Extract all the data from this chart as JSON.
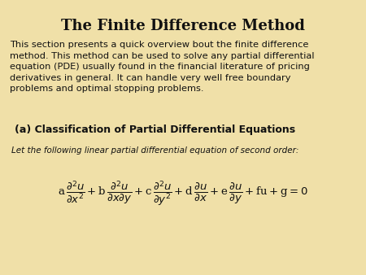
{
  "title": "The Finite Difference Method",
  "background_color": "#f0e0a8",
  "title_color": "#111111",
  "title_fontsize": 13,
  "body_text": "This section presents a quick overview bout the finite difference\nmethod. This method can be used to solve any partial differential\nequation (PDE) usually found in the financial literature of pricing\nderivatives in general. It can handle very well free boundary\nproblems and optimal stopping problems.",
  "body_fontsize": 8.2,
  "body_color": "#111111",
  "section_title": "(a) Classification of Partial Differential Equations",
  "section_fontsize": 9.0,
  "section_color": "#111111",
  "sub_text": "Let the following linear partial differential equation of second order:",
  "sub_fontsize": 7.5,
  "sub_color": "#111111",
  "eq_fontsize": 9.5,
  "eq_color": "#111111"
}
